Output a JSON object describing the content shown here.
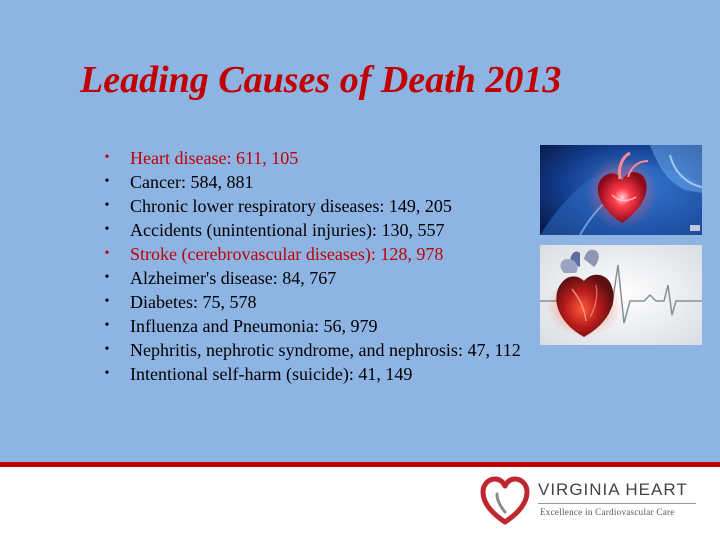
{
  "slide": {
    "title": "Leading Causes of Death 2013",
    "bullet_symbol": "•",
    "items": [
      {
        "text": "Heart disease: 611, 105",
        "highlight": true
      },
      {
        "text": "Cancer: 584, 881",
        "highlight": false
      },
      {
        "text": "Chronic lower respiratory diseases: 149, 205",
        "highlight": false
      },
      {
        "text": "Accidents (unintentional injuries): 130, 557",
        "highlight": false
      },
      {
        "text": "Stroke (cerebrovascular diseases): 128, 978",
        "highlight": true
      },
      {
        "text": "Alzheimer's disease: 84, 767",
        "highlight": false
      },
      {
        "text": "Diabetes: 75, 578",
        "highlight": false
      },
      {
        "text": "Influenza and Pneumonia: 56, 979",
        "highlight": false
      },
      {
        "text": "Nephritis, nephrotic syndrome, and nephrosis: 47, 112",
        "highlight": false
      },
      {
        "text": "Intentional self-harm (suicide): 41, 149",
        "highlight": false
      }
    ]
  },
  "footer": {
    "logo_name": "VIRGINIA HEART",
    "logo_tagline": "Excellence in Cardiovascular Care"
  },
  "colors": {
    "background": "#8eb4e3",
    "accent": "#c00000",
    "footer": "#ffffff"
  },
  "icons": [
    "heart-xray-image",
    "heart-ecg-image",
    "heart-logo-icon"
  ]
}
